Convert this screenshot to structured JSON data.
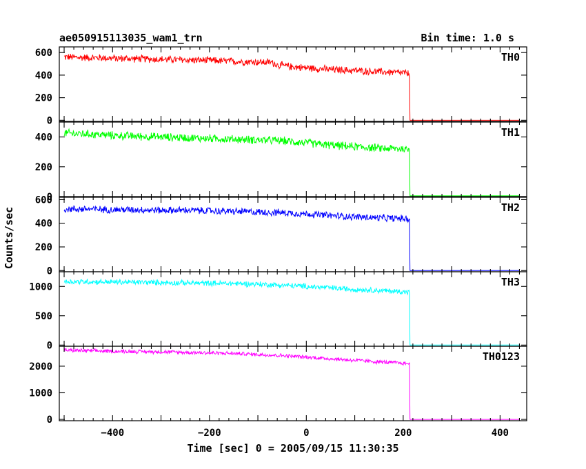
{
  "header": {
    "title": "ae050915113035_wam1_trn",
    "bin_time": "Bin time: 1.0 s"
  },
  "axes": {
    "xlabel": "Time [sec] 0 = 2005/09/15 11:30:35",
    "ylabel": "Counts/sec",
    "xlim": [
      -510,
      455
    ],
    "x_ticks": [
      -400,
      -200,
      0,
      200,
      400
    ],
    "x_tick_labels": [
      "−400",
      "−200",
      "0",
      "200",
      "400"
    ]
  },
  "chart_data": {
    "type": "line",
    "title": "ae050915113035_wam1_trn",
    "xlabel": "Time [sec] 0 = 2005/09/15 11:30:35",
    "ylabel": "Counts/sec",
    "xlim": [
      -510,
      455
    ],
    "grid": false,
    "panels": [
      {
        "name": "TH0",
        "color": "#ff0000",
        "ylim": [
          -10,
          650
        ],
        "yticks": [
          0,
          200,
          400,
          600
        ],
        "x": [
          -500,
          -450,
          -400,
          -350,
          -300,
          -250,
          -200,
          -150,
          -100,
          -70,
          -60,
          -30,
          0,
          50,
          100,
          150,
          200,
          213,
          214,
          440
        ],
        "y": [
          560,
          555,
          550,
          545,
          540,
          535,
          530,
          522,
          515,
          512,
          490,
          475,
          465,
          450,
          440,
          430,
          420,
          410,
          0,
          0
        ],
        "noise": 38
      },
      {
        "name": "TH1",
        "color": "#00ff00",
        "ylim": [
          0,
          500
        ],
        "yticks": [
          0,
          200,
          400
        ],
        "x": [
          -500,
          -450,
          -400,
          -350,
          -300,
          -250,
          -200,
          -150,
          -100,
          -50,
          0,
          50,
          100,
          150,
          200,
          213,
          214,
          440
        ],
        "y": [
          425,
          420,
          410,
          405,
          400,
          395,
          390,
          385,
          380,
          375,
          360,
          345,
          335,
          325,
          320,
          315,
          5,
          5
        ],
        "noise": 32
      },
      {
        "name": "TH2",
        "color": "#0000ff",
        "ylim": [
          -10,
          620
        ],
        "yticks": [
          0,
          200,
          400,
          600
        ],
        "x": [
          -500,
          -450,
          -400,
          -350,
          -300,
          -250,
          -200,
          -150,
          -100,
          -50,
          0,
          50,
          100,
          150,
          200,
          213,
          214,
          440
        ],
        "y": [
          520,
          520,
          515,
          515,
          510,
          510,
          505,
          500,
          495,
          490,
          480,
          465,
          455,
          445,
          440,
          435,
          0,
          0
        ],
        "noise": 35
      },
      {
        "name": "TH3",
        "color": "#00ffff",
        "ylim": [
          -20,
          1250
        ],
        "yticks": [
          0,
          500,
          1000
        ],
        "x": [
          -500,
          -450,
          -400,
          -350,
          -300,
          -250,
          -200,
          -150,
          -100,
          -50,
          0,
          50,
          100,
          150,
          200,
          213,
          214,
          440
        ],
        "y": [
          1080,
          1080,
          1075,
          1070,
          1065,
          1060,
          1055,
          1050,
          1040,
          1020,
          1000,
          975,
          950,
          930,
          910,
          900,
          0,
          0
        ],
        "noise": 55
      },
      {
        "name": "TH0123",
        "color": "#ff00ff",
        "ylim": [
          -50,
          2750
        ],
        "yticks": [
          0,
          1000,
          2000
        ],
        "x": [
          -500,
          -450,
          -400,
          -350,
          -300,
          -250,
          -200,
          -150,
          -100,
          -50,
          0,
          50,
          100,
          150,
          200,
          213,
          214,
          440
        ],
        "y": [
          2600,
          2580,
          2560,
          2550,
          2540,
          2520,
          2500,
          2480,
          2440,
          2400,
          2340,
          2280,
          2220,
          2160,
          2110,
          2090,
          0,
          0
        ],
        "noise": 85
      }
    ]
  }
}
